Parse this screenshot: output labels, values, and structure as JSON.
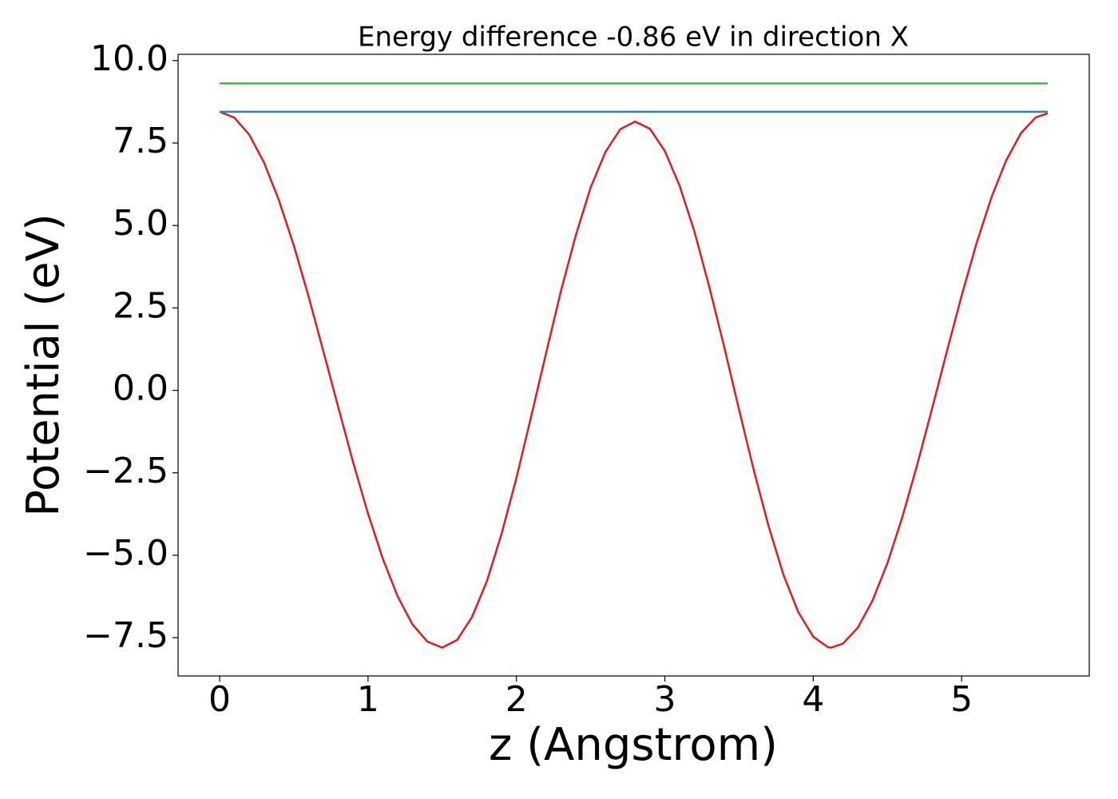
{
  "chart_data": {
    "type": "line",
    "title": "Energy difference -0.86 eV in direction X",
    "xlabel": "z (Angstrom)",
    "ylabel": "Potential (eV)",
    "xlim": [
      -0.28,
      5.86
    ],
    "ylim": [
      -8.66,
      10.19
    ],
    "xticks": [
      0,
      1,
      2,
      3,
      4,
      5
    ],
    "yticks": [
      {
        "value": -7.5,
        "label": "−7.5"
      },
      {
        "value": -5,
        "label": "−5.0"
      },
      {
        "value": -2.5,
        "label": "−2.5"
      },
      {
        "value": 0,
        "label": "0.0"
      },
      {
        "value": 2.5,
        "label": "2.5"
      },
      {
        "value": 5,
        "label": "5.0"
      },
      {
        "value": 7.5,
        "label": "7.5"
      },
      {
        "value": 10,
        "label": "10.0"
      }
    ],
    "grid": false,
    "series": [
      {
        "color": "#e41a1c",
        "x": [
          0,
          0.1,
          0.2,
          0.3,
          0.4,
          0.5,
          0.6,
          0.7,
          0.8,
          0.9,
          1.0,
          1.1,
          1.2,
          1.3,
          1.4,
          1.5,
          1.6,
          1.7,
          1.8,
          1.9,
          2.0,
          2.1,
          2.2,
          2.3,
          2.4,
          2.5,
          2.6,
          2.7,
          2.8,
          2.9,
          3.0,
          3.1,
          3.2,
          3.3,
          3.4,
          3.5,
          3.6,
          3.7,
          3.8,
          3.9,
          4.0,
          4.1,
          4.12,
          4.2,
          4.3,
          4.4,
          4.5,
          4.6,
          4.7,
          4.8,
          4.9,
          5.0,
          5.1,
          5.2,
          5.3,
          5.4,
          5.5,
          5.58
        ],
        "values": [
          8.45,
          8.27,
          7.75,
          6.9,
          5.76,
          4.39,
          2.84,
          1.17,
          -0.52,
          -2.19,
          -3.74,
          -5.11,
          -6.25,
          -7.1,
          -7.62,
          -7.8,
          -7.57,
          -6.88,
          -5.8,
          -4.35,
          -2.66,
          -0.78,
          1.13,
          3.01,
          4.7,
          6.15,
          7.23,
          7.92,
          8.15,
          7.93,
          7.26,
          6.2,
          4.81,
          3.13,
          1.32,
          -0.58,
          -2.43,
          -4.13,
          -5.6,
          -6.73,
          -7.47,
          -7.79,
          -7.8,
          -7.68,
          -7.2,
          -6.37,
          -5.24,
          -3.85,
          -2.27,
          -0.57,
          1.17,
          2.87,
          4.45,
          5.84,
          6.97,
          7.8,
          8.28,
          8.4
        ]
      },
      {
        "color": "#377eb8",
        "x": [
          0,
          5.58
        ],
        "values": [
          8.45,
          8.45
        ]
      },
      {
        "color": "#4daf4a",
        "x": [
          0,
          5.58
        ],
        "values": [
          9.31,
          9.31
        ]
      }
    ]
  }
}
